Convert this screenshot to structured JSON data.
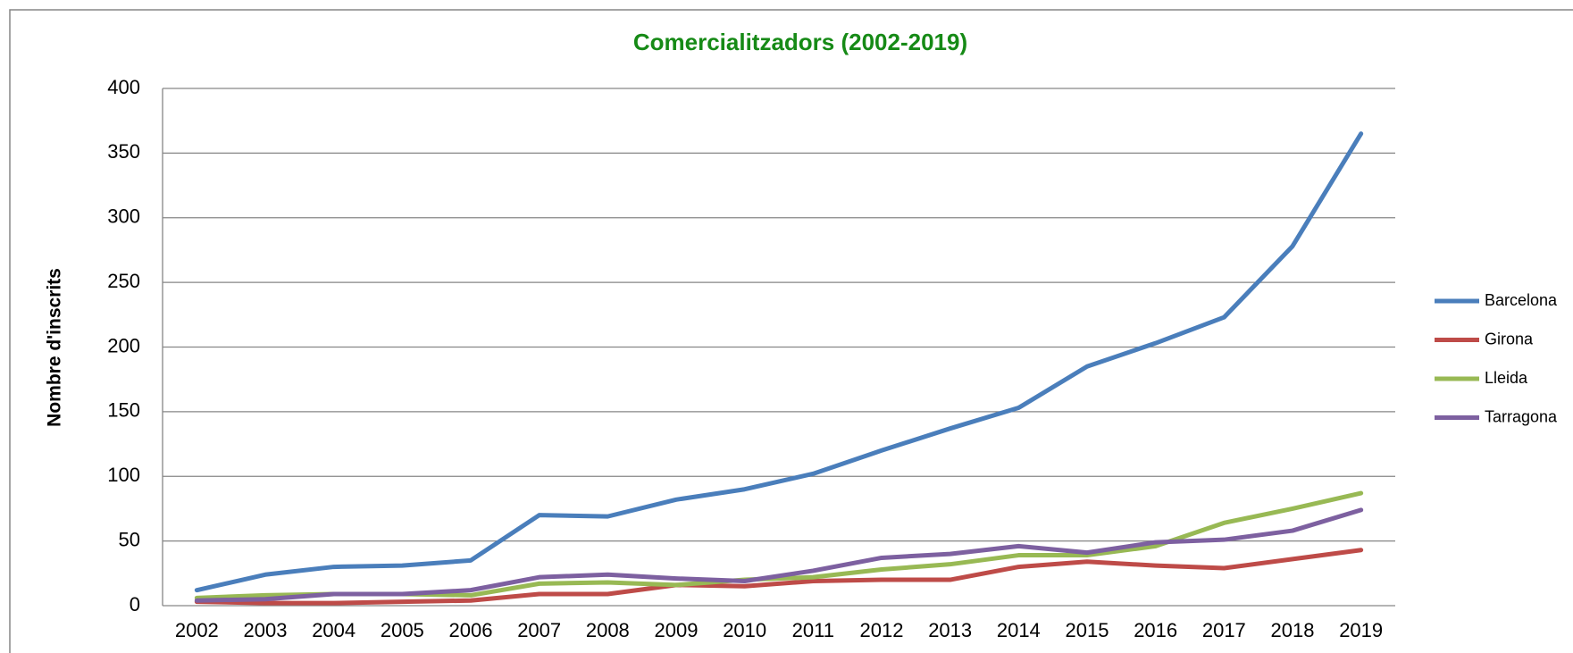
{
  "chart_data": {
    "type": "line",
    "title": "Comercialitzadors (2002-2019)",
    "y_label": "Nombre d'inscrits",
    "categories": [
      "2002",
      "2003",
      "2004",
      "2005",
      "2006",
      "2007",
      "2008",
      "2009",
      "2010",
      "2011",
      "2012",
      "2013",
      "2014",
      "2015",
      "2016",
      "2017",
      "2018",
      "2019"
    ],
    "series": [
      {
        "name": "Barcelona",
        "color": "#4a7ebb",
        "values": [
          12,
          24,
          30,
          31,
          35,
          70,
          69,
          82,
          90,
          102,
          120,
          137,
          153,
          185,
          203,
          223,
          278,
          365
        ]
      },
      {
        "name": "Girona",
        "color": "#be4b48",
        "values": [
          3,
          2,
          2,
          3,
          4,
          9,
          9,
          16,
          15,
          19,
          20,
          20,
          30,
          34,
          31,
          29,
          36,
          43
        ]
      },
      {
        "name": "Lleida",
        "color": "#98b954",
        "values": [
          6,
          8,
          9,
          9,
          8,
          17,
          18,
          16,
          20,
          22,
          28,
          32,
          39,
          39,
          46,
          64,
          75,
          87
        ]
      },
      {
        "name": "Tarragona",
        "color": "#7d60a0",
        "values": [
          4,
          5,
          9,
          9,
          12,
          22,
          24,
          21,
          19,
          27,
          37,
          40,
          46,
          41,
          49,
          51,
          58,
          74
        ]
      }
    ],
    "ylim": [
      0,
      400
    ],
    "yticks": [
      0,
      50,
      100,
      150,
      200,
      250,
      300,
      350,
      400
    ],
    "grid": true,
    "legend": "right"
  }
}
